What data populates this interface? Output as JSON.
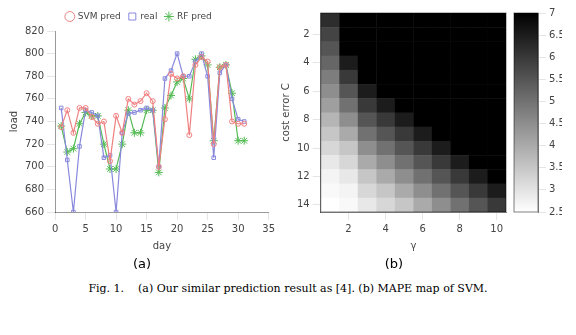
{
  "chart_data": [
    {
      "type": "line",
      "x": [
        1,
        2,
        3,
        4,
        5,
        6,
        7,
        8,
        9,
        10,
        11,
        12,
        13,
        14,
        15,
        16,
        17,
        18,
        19,
        20,
        21,
        22,
        23,
        24,
        25,
        26,
        27,
        28,
        29,
        30,
        31
      ],
      "series": [
        {
          "name": "SVM pred",
          "color": "#f08080",
          "marker": "circle",
          "values": [
            735,
            750,
            730,
            752,
            752,
            744,
            738,
            740,
            705,
            745,
            730,
            760,
            755,
            758,
            765,
            758,
            700,
            742,
            782,
            778,
            780,
            728,
            790,
            797,
            793,
            720,
            788,
            790,
            740,
            738,
            738
          ]
        },
        {
          "name": "real",
          "color": "#8888dd",
          "marker": "square",
          "values": [
            752,
            706,
            660,
            718,
            750,
            748,
            745,
            708,
            710,
            660,
            730,
            747,
            748,
            750,
            752,
            750,
            700,
            778,
            785,
            800,
            780,
            780,
            793,
            800,
            780,
            708,
            783,
            790,
            760,
            742,
            740
          ]
        },
        {
          "name": "RF pred",
          "color": "#55bb55",
          "marker": "star",
          "values": [
            736,
            713,
            716,
            738,
            748,
            745,
            745,
            720,
            698,
            698,
            720,
            750,
            730,
            730,
            750,
            750,
            695,
            752,
            763,
            775,
            778,
            760,
            795,
            798,
            790,
            723,
            788,
            790,
            765,
            723,
            723
          ]
        }
      ],
      "xlim": [
        0,
        35
      ],
      "xticks": [
        0,
        5,
        10,
        15,
        20,
        25,
        30,
        35
      ],
      "ylim": [
        660,
        820
      ],
      "yticks": [
        660,
        680,
        700,
        720,
        740,
        760,
        780,
        800,
        820
      ],
      "xlabel": "day",
      "ylabel": "load",
      "grid": false,
      "legend": "top",
      "annotation": "(a)"
    },
    {
      "type": "heatmap",
      "x": [
        1,
        2,
        3,
        4,
        5,
        6,
        7,
        8,
        9,
        10
      ],
      "y": [
        1,
        2,
        3,
        4,
        5,
        6,
        7,
        8,
        9,
        10,
        11,
        12,
        13,
        14
      ],
      "values": [
        [
          6.2,
          7.0,
          7.0,
          7.0,
          7.0,
          7.0,
          7.0,
          7.0,
          7.0,
          7.0
        ],
        [
          5.8,
          7.0,
          7.0,
          7.0,
          7.0,
          7.0,
          7.0,
          7.0,
          7.0,
          7.0
        ],
        [
          5.5,
          7.0,
          7.0,
          7.0,
          7.0,
          7.0,
          7.0,
          7.0,
          7.0,
          7.0
        ],
        [
          5.2,
          6.5,
          7.0,
          7.0,
          7.0,
          7.0,
          7.0,
          7.0,
          7.0,
          7.0
        ],
        [
          4.8,
          6.0,
          7.0,
          7.0,
          7.0,
          7.0,
          7.0,
          7.0,
          7.0,
          7.0
        ],
        [
          4.5,
          5.5,
          6.5,
          7.0,
          7.0,
          7.0,
          7.0,
          7.0,
          7.0,
          7.0
        ],
        [
          4.2,
          5.0,
          6.0,
          6.5,
          7.0,
          7.0,
          7.0,
          7.0,
          7.0,
          7.0
        ],
        [
          3.8,
          4.5,
          5.5,
          6.0,
          6.5,
          7.0,
          7.0,
          7.0,
          7.0,
          7.0
        ],
        [
          3.5,
          4.0,
          5.0,
          5.5,
          6.0,
          6.5,
          7.0,
          7.0,
          7.0,
          7.0
        ],
        [
          3.2,
          3.5,
          4.5,
          5.0,
          5.5,
          6.0,
          6.5,
          7.0,
          7.0,
          7.0
        ],
        [
          2.9,
          3.2,
          4.0,
          4.5,
          5.0,
          5.5,
          6.0,
          6.5,
          7.0,
          7.0
        ],
        [
          2.7,
          2.9,
          3.5,
          4.0,
          4.5,
          5.0,
          5.5,
          6.0,
          6.5,
          7.0
        ],
        [
          2.6,
          2.7,
          3.2,
          3.5,
          4.0,
          4.5,
          5.0,
          5.5,
          6.0,
          6.5
        ],
        [
          2.5,
          2.6,
          2.9,
          3.2,
          3.5,
          4.0,
          4.5,
          5.0,
          5.5,
          6.0
        ]
      ],
      "xlim": [
        0.5,
        10.5
      ],
      "xticks": [
        2,
        4,
        6,
        8,
        10
      ],
      "ylim": [
        14.5,
        0.5
      ],
      "yticks": [
        2,
        4,
        6,
        8,
        10,
        12,
        14
      ],
      "xlabel": "γ",
      "ylabel": "cost error C",
      "colorbar_range": [
        2.5,
        7.0
      ],
      "colorbar_ticks": [
        2.5,
        3,
        3.5,
        4,
        4.5,
        5,
        5.5,
        6,
        6.5,
        7
      ],
      "grid": false,
      "annotation": "(b)"
    }
  ],
  "caption": "Fig. 1.    (a) Our similar prediction result as [4]. (b) MAPE map of SVM."
}
